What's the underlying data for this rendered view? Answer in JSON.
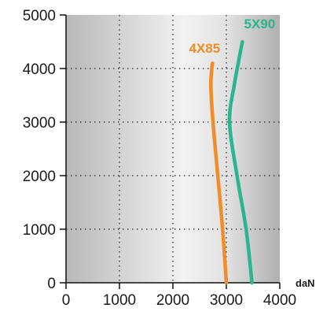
{
  "chart_data": {
    "type": "line",
    "xunit": "daN",
    "xlim": [
      0,
      4000
    ],
    "ylim": [
      0,
      5000
    ],
    "x_ticks": [
      "0",
      "1000",
      "2000",
      "3000",
      "4000"
    ],
    "y_ticks": [
      "0",
      "1000",
      "2000",
      "3000",
      "4000",
      "5000"
    ],
    "grid": true,
    "series": [
      {
        "name": "4X85",
        "color": "#f28c28",
        "points": [
          [
            3000,
            0
          ],
          [
            2930,
            1000
          ],
          [
            2840,
            2000
          ],
          [
            2750,
            3000
          ],
          [
            2710,
            3700
          ],
          [
            2740,
            4100
          ]
        ]
      },
      {
        "name": "5X90",
        "color": "#2bb58f",
        "points": [
          [
            3480,
            0
          ],
          [
            3370,
            1000
          ],
          [
            3200,
            2000
          ],
          [
            3060,
            3000
          ],
          [
            3150,
            3700
          ],
          [
            3300,
            4500
          ]
        ]
      }
    ]
  }
}
